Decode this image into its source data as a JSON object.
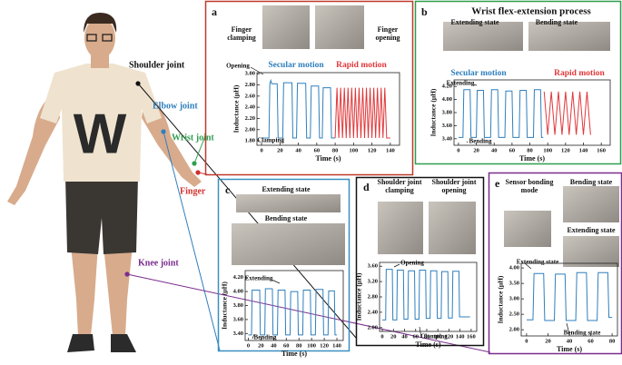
{
  "figure": {
    "shirt_text": "W",
    "labels": [
      {
        "text": "Shoulder joint",
        "color": "#111111"
      },
      {
        "text": "Elbow joint",
        "color": "#2f7fbd"
      },
      {
        "text": "Wrist joint",
        "color": "#2e9e4f"
      },
      {
        "text": "Finger",
        "color": "#d0312d"
      },
      {
        "text": "Knee joint",
        "color": "#7b2d8e"
      }
    ]
  },
  "chart_data": [
    {
      "type": "line",
      "panel": "a",
      "frame_color": "#c0392b",
      "photo_captions": [
        "Finger clamping",
        "Finger opening"
      ],
      "xlabel": "Time (s)",
      "ylabel": "Inductance (μH)",
      "xlim": [
        -5,
        150
      ],
      "ylim": [
        1.72,
        3.02
      ],
      "xticks": [
        0,
        20,
        40,
        60,
        80,
        100,
        120,
        140
      ],
      "yticks": [
        {
          "value": 1.8,
          "label": "1.80"
        },
        {
          "value": 2.0,
          "label": "2.00"
        },
        {
          "value": 2.2,
          "label": "2.20"
        },
        {
          "value": 2.4,
          "label": "2.40"
        },
        {
          "value": 2.6,
          "label": "2.60"
        },
        {
          "value": 2.8,
          "label": "2.80"
        },
        {
          "value": 3.0,
          "label": "3.00"
        }
      ],
      "series": [
        {
          "name": "Secular motion",
          "color": "#2f7fbd",
          "x": [
            0,
            8,
            9,
            10,
            11,
            17,
            18,
            23,
            24,
            33,
            34,
            38,
            39,
            48,
            49,
            53,
            54,
            62,
            63,
            66,
            67,
            75,
            76,
            80
          ],
          "values": [
            1.85,
            1.85,
            2.82,
            2.88,
            2.82,
            2.82,
            1.85,
            1.85,
            2.84,
            2.84,
            1.85,
            1.85,
            2.83,
            2.83,
            1.85,
            1.85,
            2.78,
            2.78,
            1.85,
            1.85,
            2.75,
            2.75,
            1.85,
            1.85
          ]
        },
        {
          "name": "Rapid motion",
          "color": "#e0383b",
          "x": [
            80,
            82,
            84,
            86,
            88,
            90,
            92,
            94,
            96,
            98,
            100,
            102,
            104,
            106,
            108,
            110,
            112,
            114,
            116,
            118,
            120,
            122,
            124,
            126,
            128,
            130,
            132,
            134,
            136,
            140
          ],
          "values": [
            1.85,
            2.75,
            1.85,
            2.75,
            1.85,
            2.75,
            1.85,
            2.75,
            1.85,
            2.75,
            1.85,
            2.75,
            1.85,
            2.75,
            1.85,
            2.75,
            1.85,
            2.75,
            1.85,
            2.75,
            1.85,
            2.75,
            1.85,
            2.75,
            1.85,
            2.75,
            1.85,
            2.75,
            1.85,
            1.85
          ]
        }
      ],
      "annotations": [
        "Opening",
        "Clamping"
      ]
    },
    {
      "type": "line",
      "panel": "b",
      "frame_color": "#2e9e4f",
      "title": "Wrist flex-extension process",
      "photo_captions": [
        "Extending state",
        "Bending state"
      ],
      "xlabel": "Time (s)",
      "ylabel": "Inductance (μH)",
      "xlim": [
        -5,
        170
      ],
      "ylim": [
        3.3,
        4.3
      ],
      "xticks": [
        0,
        20,
        40,
        60,
        80,
        100,
        120,
        140,
        160
      ],
      "yticks": [
        {
          "value": 3.4,
          "label": "3.40"
        },
        {
          "value": 3.6,
          "label": "3.60"
        },
        {
          "value": 3.8,
          "label": "3.80"
        },
        {
          "value": 4.0,
          "label": "4.00"
        },
        {
          "value": 4.2,
          "label": "4.20"
        }
      ],
      "series": [
        {
          "name": "Secular motion",
          "color": "#2f7fbd",
          "x": [
            0,
            5,
            6,
            13,
            14,
            20,
            21,
            28,
            29,
            36,
            37,
            44,
            45,
            52,
            53,
            60,
            61,
            68,
            69,
            76,
            77,
            84,
            85,
            92,
            93,
            95
          ],
          "values": [
            3.42,
            3.42,
            4.15,
            4.15,
            3.42,
            3.42,
            4.14,
            4.14,
            3.42,
            3.42,
            4.15,
            4.15,
            3.42,
            3.42,
            4.13,
            4.13,
            3.42,
            3.42,
            4.14,
            4.14,
            3.42,
            3.42,
            4.15,
            4.15,
            3.42,
            3.42
          ]
        },
        {
          "name": "Rapid motion",
          "color": "#e0383b",
          "x": [
            96,
            100,
            104,
            108,
            112,
            116,
            120,
            124,
            128,
            132,
            136,
            140,
            144,
            148
          ],
          "values": [
            4.12,
            3.46,
            4.12,
            3.46,
            4.12,
            3.46,
            4.12,
            3.46,
            4.12,
            3.46,
            4.12,
            3.46,
            4.12,
            3.46
          ]
        }
      ],
      "annotations": [
        "Extending",
        "Bending"
      ]
    },
    {
      "type": "line",
      "panel": "c",
      "frame_color": "#3a8fc0",
      "photo_captions": [
        "Extending state",
        "Bending state"
      ],
      "xlabel": "Time (s)",
      "ylabel": "Inductance (μH)",
      "xlim": [
        -5,
        150
      ],
      "ylim": [
        3.3,
        4.3
      ],
      "xticks": [
        0,
        20,
        40,
        60,
        80,
        100,
        120,
        140
      ],
      "yticks": [
        {
          "value": 3.4,
          "label": "3.40"
        },
        {
          "value": 3.6,
          "label": "3.60"
        },
        {
          "value": 3.8,
          "label": "3.80"
        },
        {
          "value": 4.0,
          "label": "4.00"
        },
        {
          "value": 4.2,
          "label": "4.20"
        }
      ],
      "series": [
        {
          "color": "#2f7fbd",
          "x": [
            0,
            5,
            6,
            18,
            19,
            26,
            27,
            38,
            39,
            46,
            47,
            58,
            59,
            66,
            67,
            78,
            79,
            86,
            87,
            98,
            99,
            106,
            107,
            118,
            119,
            126,
            127,
            136,
            137,
            140
          ],
          "values": [
            3.38,
            3.38,
            4.02,
            4.02,
            3.38,
            3.38,
            4.04,
            4.04,
            3.38,
            3.38,
            4.02,
            4.02,
            3.38,
            3.38,
            4.0,
            4.0,
            3.38,
            3.38,
            4.02,
            4.02,
            3.38,
            3.38,
            4.03,
            4.03,
            3.38,
            3.38,
            4.01,
            4.01,
            3.38,
            3.38
          ]
        }
      ],
      "annotations": [
        "Extending",
        "Bending"
      ]
    },
    {
      "type": "line",
      "panel": "d",
      "frame_color": "#111111",
      "photo_captions": [
        "Shoulder joint clamping",
        "Shoulder joint opening"
      ],
      "xlabel": "Time (s)",
      "ylabel": "Inductance (μH)",
      "xlim": [
        -5,
        170
      ],
      "ylim": [
        1.9,
        3.7
      ],
      "xticks": [
        0,
        20,
        40,
        60,
        80,
        100,
        120,
        140,
        160
      ],
      "yticks": [
        {
          "value": 2.0,
          "label": "2.00"
        },
        {
          "value": 2.4,
          "label": "2.40"
        },
        {
          "value": 2.8,
          "label": "2.80"
        },
        {
          "value": 3.2,
          "label": "3.20"
        },
        {
          "value": 3.6,
          "label": "3.60"
        }
      ],
      "series": [
        {
          "color": "#2f7fbd",
          "x": [
            0,
            6,
            7,
            18,
            19,
            26,
            27,
            38,
            39,
            46,
            47,
            58,
            59,
            66,
            67,
            78,
            79,
            86,
            87,
            98,
            99,
            106,
            107,
            118,
            119,
            126,
            127,
            138,
            139,
            158
          ],
          "values": [
            2.2,
            2.2,
            3.52,
            3.52,
            2.2,
            2.2,
            3.5,
            3.5,
            2.22,
            2.22,
            3.48,
            3.48,
            2.22,
            2.22,
            3.5,
            3.5,
            2.24,
            2.24,
            3.48,
            3.48,
            2.24,
            2.24,
            3.46,
            3.46,
            2.25,
            2.25,
            3.47,
            3.47,
            2.28,
            2.28
          ]
        }
      ],
      "annotations": [
        "Opening",
        "Clamping"
      ]
    },
    {
      "type": "line",
      "panel": "e",
      "frame_color": "#7b2d8e",
      "photo_captions": [
        "Sensor bonding mode",
        "Bending state",
        "Extending state"
      ],
      "xlabel": "Time (s)",
      "ylabel": "Inductance (μH)",
      "xlim": [
        -5,
        85
      ],
      "ylim": [
        1.8,
        4.15
      ],
      "xticks": [
        0,
        20,
        40,
        60,
        80
      ],
      "yticks": [
        {
          "value": 2.0,
          "label": "2.00"
        },
        {
          "value": 2.5,
          "label": "2.50"
        },
        {
          "value": 3.0,
          "label": "3.00"
        },
        {
          "value": 3.5,
          "label": "3.50"
        },
        {
          "value": 4.0,
          "label": "4.00"
        }
      ],
      "series": [
        {
          "color": "#2f7fbd",
          "x": [
            0,
            6,
            7,
            16,
            17,
            26,
            27,
            36,
            37,
            46,
            47,
            56,
            57,
            66,
            67,
            76,
            77,
            80
          ],
          "values": [
            2.32,
            2.32,
            3.82,
            3.82,
            2.3,
            2.3,
            3.8,
            3.8,
            2.3,
            2.3,
            3.85,
            3.85,
            2.3,
            2.3,
            3.85,
            3.85,
            2.4,
            2.4
          ]
        }
      ],
      "annotations": [
        "Extending state",
        "Bending state"
      ]
    }
  ]
}
